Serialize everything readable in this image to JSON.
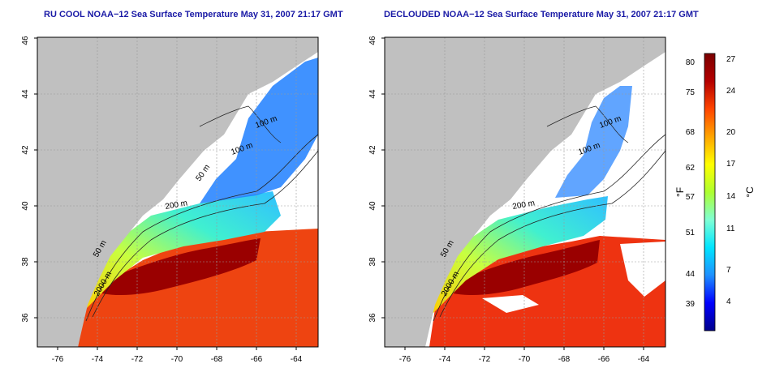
{
  "panels": [
    {
      "title": "RU COOL NOAA−12 Sea Surface Temperature May 31, 2007 21:17 GMT",
      "variant": "full"
    },
    {
      "title": "DECLOUDED NOAA−12 Sea Surface Temperature May 31, 2007 21:17 GMT",
      "variant": "declouded"
    }
  ],
  "axes": {
    "lon_ticks": [
      "-76",
      "-74",
      "-72",
      "-70",
      "-68",
      "-66",
      "-64"
    ],
    "lat_ticks": [
      "36",
      "38",
      "40",
      "42",
      "44",
      "46"
    ],
    "lon_range": [
      -77,
      -63
    ],
    "lat_range": [
      35,
      46
    ]
  },
  "isobaths": [
    {
      "label": "50 m"
    },
    {
      "label": "100 m"
    },
    {
      "label": "200 m"
    },
    {
      "label": "2000 m"
    }
  ],
  "colorbar": {
    "fahrenheit_label": "°F",
    "celsius_label": "°C",
    "fahrenheit_ticks": [
      "80",
      "75",
      "68",
      "62",
      "57",
      "51",
      "44",
      "39"
    ],
    "celsius_ticks": [
      "27",
      "24",
      "20",
      "17",
      "14",
      "11",
      "7",
      "4"
    ],
    "colors": [
      "#00008b",
      "#0000ff",
      "#1e90ff",
      "#00ffff",
      "#7fffd4",
      "#adff2f",
      "#ffff00",
      "#ffa500",
      "#ff4500",
      "#b40000",
      "#7a0000"
    ],
    "land_color": "#c0c0c0",
    "grid_color": "#9a9a9a"
  }
}
